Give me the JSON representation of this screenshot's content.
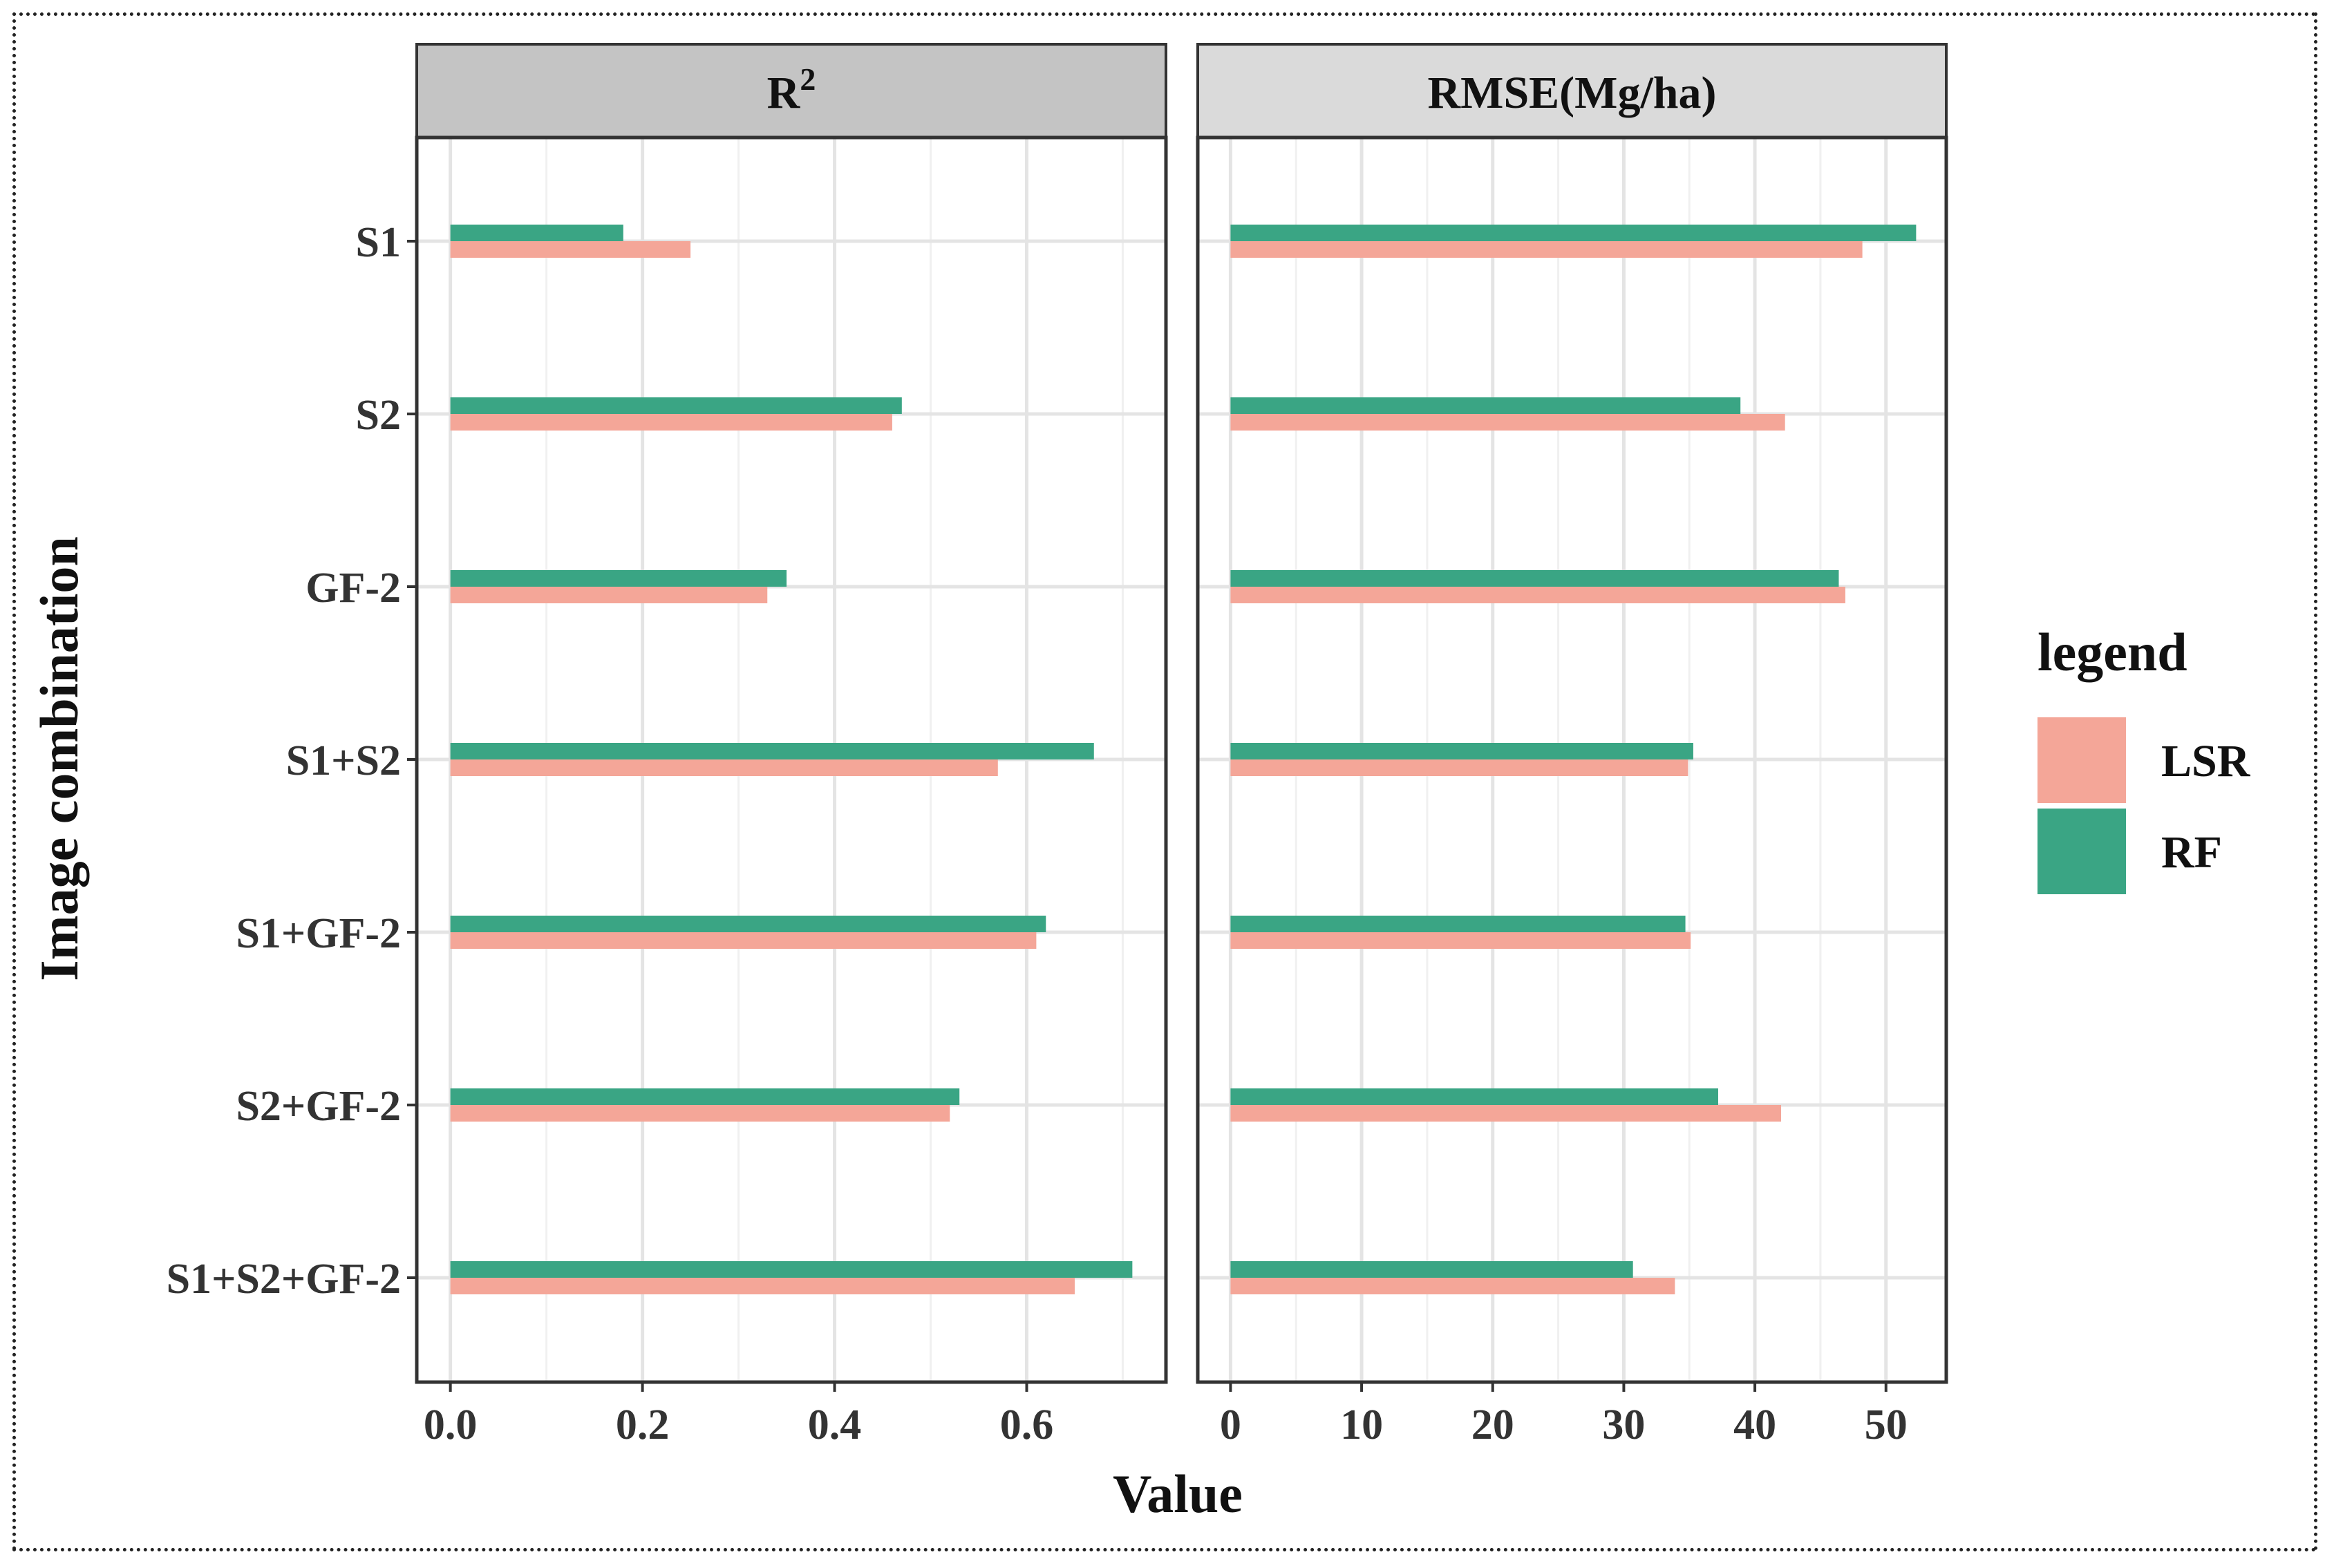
{
  "chart_data": {
    "type": "bar",
    "orientation": "horizontal",
    "y_axis_title": "Image combination",
    "x_axis_title": "Value",
    "categories": [
      "S1",
      "S2",
      "GF-2",
      "S1+S2",
      "S1+GF-2",
      "S2+GF-2",
      "S1+S2+GF-2"
    ],
    "legend": {
      "title": "legend",
      "position": "right",
      "entries": [
        {
          "name": "LSR",
          "color": "#f4a698"
        },
        {
          "name": "RF",
          "color": "#3aa584"
        }
      ]
    },
    "panels": [
      {
        "title_main": "R",
        "title_sup": "2",
        "xlim": [
          -0.035,
          0.745
        ],
        "ticks": [
          0.0,
          0.2,
          0.4,
          0.6
        ],
        "tick_labels": [
          "0.0",
          "0.2",
          "0.4",
          "0.6"
        ],
        "minor_ticks": [
          0.1,
          0.3,
          0.5,
          0.7
        ],
        "strip_fill": "#c4c4c4",
        "series": [
          {
            "name": "LSR",
            "values": [
              0.25,
              0.46,
              0.33,
              0.57,
              0.61,
              0.52,
              0.65
            ]
          },
          {
            "name": "RF",
            "values": [
              0.18,
              0.47,
              0.35,
              0.67,
              0.62,
              0.53,
              0.71
            ]
          }
        ]
      },
      {
        "title_main": "RMSE(Mg/ha)",
        "title_sup": "",
        "xlim": [
          -2.5,
          54.6
        ],
        "ticks": [
          0,
          10,
          20,
          30,
          40,
          50
        ],
        "tick_labels": [
          "0",
          "10",
          "20",
          "30",
          "40",
          "50"
        ],
        "minor_ticks": [
          5,
          15,
          25,
          35,
          45
        ],
        "strip_fill": "#dadada",
        "series": [
          {
            "name": "LSR",
            "values": [
              48.2,
              42.3,
              46.9,
              34.9,
              35.1,
              42.0,
              33.9
            ]
          },
          {
            "name": "RF",
            "values": [
              52.3,
              38.9,
              46.4,
              35.3,
              34.7,
              37.2,
              30.7
            ]
          }
        ]
      }
    ]
  }
}
